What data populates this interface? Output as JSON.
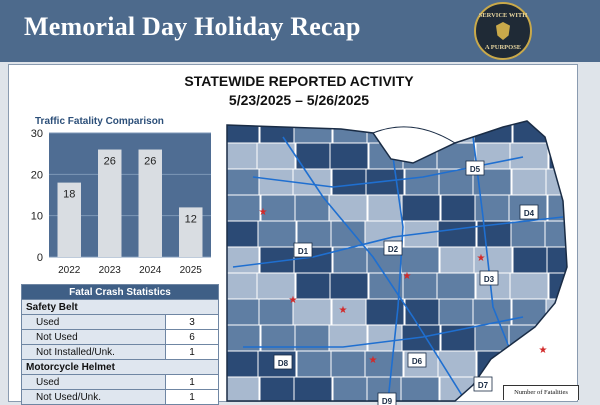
{
  "header": {
    "title": "Memorial Day Holiday Recap",
    "badge_top": "SERVICE WITH",
    "badge_bottom": "A PURPOSE"
  },
  "headline": {
    "line1": "STATEWIDE REPORTED ACTIVITY",
    "line2": "5/23/2025 – 5/26/2025"
  },
  "chart_data": {
    "type": "bar",
    "title": "Traffic Fatality Comparison",
    "categories": [
      "2022",
      "2023",
      "2024",
      "2025"
    ],
    "values": [
      18,
      26,
      26,
      12
    ],
    "ylim": [
      0,
      30
    ],
    "yticks": [
      0,
      10,
      20,
      30
    ],
    "grid": true,
    "bar_color": "#d9dde2",
    "plot_bg": "#4f6d93"
  },
  "stats": {
    "title": "Fatal Crash Statistics",
    "safety_belt": {
      "label": "Safety Belt",
      "rows": [
        {
          "label": "Used",
          "value": "3"
        },
        {
          "label": "Not Used",
          "value": "6"
        },
        {
          "label": "Not Installed/Unk.",
          "value": "1"
        }
      ]
    },
    "motorcycle_helmet": {
      "label": "Motorcycle Helmet",
      "rows": [
        {
          "label": "Used",
          "value": "1"
        },
        {
          "label": "Not Used/Unk.",
          "value": "1"
        }
      ]
    }
  },
  "map": {
    "districts": [
      "D1",
      "D2",
      "D3",
      "D4",
      "D5",
      "D6",
      "D7",
      "D8",
      "D9"
    ],
    "legend_text": "Number of Fatalities",
    "colors": {
      "dark": "#2b4a75",
      "mid": "#5f7ea3",
      "light": "#a8b9cf",
      "road": "#1f6fd0"
    }
  }
}
